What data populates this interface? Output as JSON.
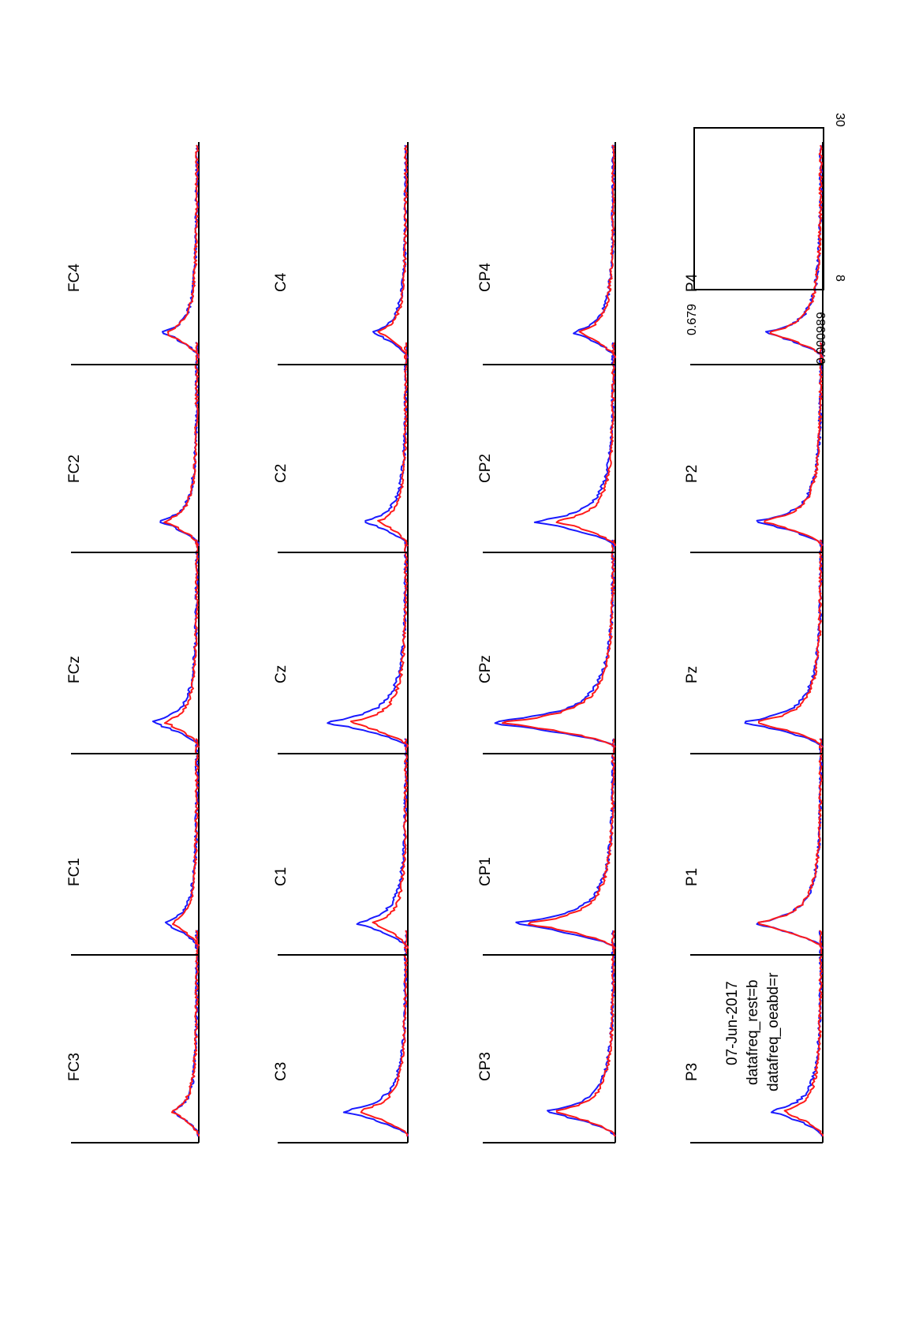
{
  "figure": {
    "date": "07-Jun-2017",
    "legend": [
      "datafreq_rest=b",
      "datafreq_oeabd=r"
    ],
    "scale_box": {
      "x_min": "8",
      "x_max": "30",
      "y_max": "0.679",
      "y_min": "0.000989"
    }
  },
  "colors": {
    "series_b": "#1a1aff",
    "series_r": "#ff1a1a",
    "axis": "#000000"
  },
  "chart_data": {
    "type": "line",
    "layout": "topoplot-grid",
    "xlim": [
      8,
      30
    ],
    "ylim": [
      0.000989,
      0.679
    ],
    "series": [
      {
        "name": "datafreq_rest",
        "color": "b"
      },
      {
        "name": "datafreq_oeabd",
        "color": "r"
      }
    ],
    "channels": [
      {
        "label": "FC3",
        "peak_b": 0.2,
        "peak_r": 0.21
      },
      {
        "label": "FC1",
        "peak_b": 0.26,
        "peak_r": 0.2
      },
      {
        "label": "FCz",
        "peak_b": 0.36,
        "peak_r": 0.26
      },
      {
        "label": "FC2",
        "peak_b": 0.29,
        "peak_r": 0.26
      },
      {
        "label": "FC4",
        "peak_b": 0.27,
        "peak_r": 0.26
      },
      {
        "label": "C3",
        "peak_b": 0.5,
        "peak_r": 0.39
      },
      {
        "label": "C1",
        "peak_b": 0.4,
        "peak_r": 0.26
      },
      {
        "label": "Cz",
        "peak_b": 0.64,
        "peak_r": 0.44
      },
      {
        "label": "C2",
        "peak_b": 0.34,
        "peak_r": 0.22
      },
      {
        "label": "C4",
        "peak_b": 0.27,
        "peak_r": 0.22
      },
      {
        "label": "CP3",
        "peak_b": 0.54,
        "peak_r": 0.46
      },
      {
        "label": "CP1",
        "peak_b": 0.79,
        "peak_r": 0.68
      },
      {
        "label": "CPz",
        "peak_b": 1.0,
        "peak_r": 0.88
      },
      {
        "label": "CP2",
        "peak_b": 0.62,
        "peak_r": 0.45
      },
      {
        "label": "CP4",
        "peak_b": 0.32,
        "peak_r": 0.28
      },
      {
        "label": "P3",
        "peak_b": 0.4,
        "peak_r": 0.3
      },
      {
        "label": "P1",
        "peak_b": 0.52,
        "peak_r": 0.52
      },
      {
        "label": "Pz",
        "peak_b": 0.62,
        "peak_r": 0.52
      },
      {
        "label": "P2",
        "peak_b": 0.52,
        "peak_r": 0.47
      },
      {
        "label": "P4",
        "peak_b": 0.44,
        "peak_r": 0.42
      }
    ]
  }
}
